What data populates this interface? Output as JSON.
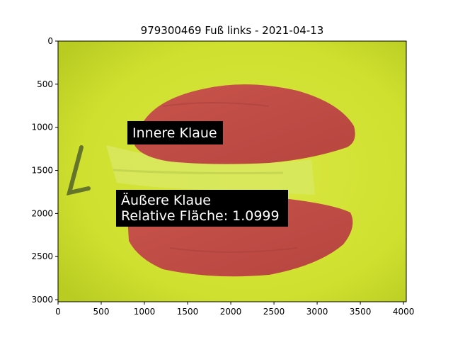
{
  "chart_data": {
    "type": "image",
    "title": "979300469 Fuß links - 2021-04-13",
    "xlim": [
      0,
      4032
    ],
    "ylim": [
      3024,
      0
    ],
    "x_ticks": [
      0,
      500,
      1000,
      1500,
      2000,
      2500,
      3000,
      3500,
      4000
    ],
    "y_ticks": [
      0,
      500,
      1000,
      1500,
      2000,
      2500,
      3000
    ],
    "grid": false,
    "annotations": [
      {
        "lines": [
          "Innere Klaue"
        ],
        "x": 830,
        "y": 1100
      },
      {
        "lines": [
          "Äußere Klaue",
          "Relative Fläche: 1.0999"
        ],
        "x": 720,
        "y": 1950
      }
    ],
    "colors": {
      "background": "#ccde2c",
      "claw_highlight": "#c0504a",
      "label_box": "#000000",
      "label_text": "#ffffff"
    }
  }
}
